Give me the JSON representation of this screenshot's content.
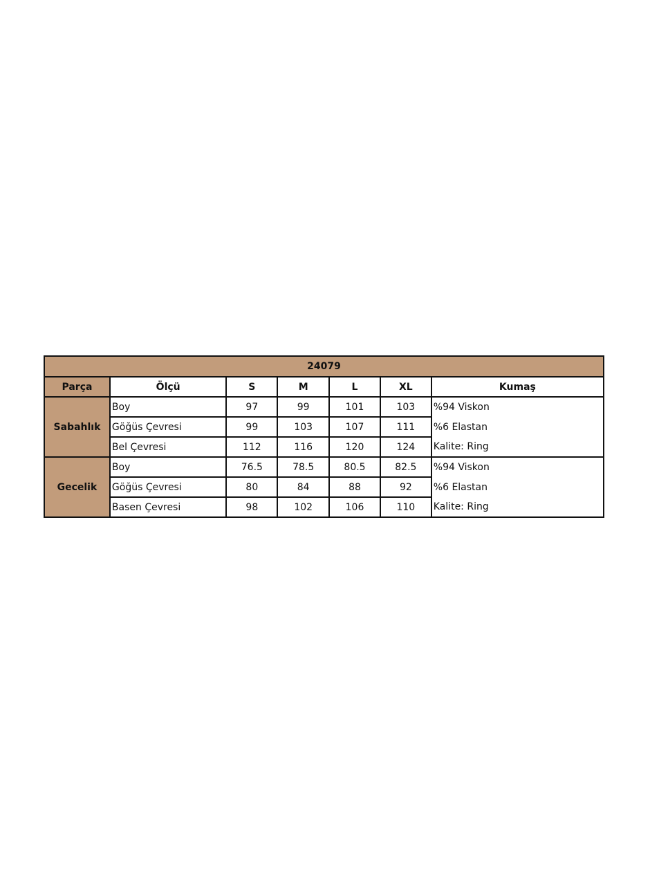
{
  "title": "24079",
  "headers": [
    "Parça",
    "Ölçü",
    "S",
    "M",
    "L",
    "XL",
    "Kumaş"
  ],
  "groups": [
    {
      "name": "Sabahlık",
      "rows": [
        {
          "measure": "Boy",
          "values": [
            "97",
            "99",
            "101",
            "103"
          ],
          "fabric": "%94 Viskon"
        },
        {
          "measure": "Göğüs Çevresi",
          "values": [
            "99",
            "103",
            "107",
            "111"
          ],
          "fabric": "%6 Elastan"
        },
        {
          "measure": "Bel Çevresi",
          "values": [
            "112",
            "116",
            "120",
            "124"
          ],
          "fabric": "Kalite: Ring"
        }
      ]
    },
    {
      "name": "Gecelik",
      "rows": [
        {
          "measure": "Boy",
          "values": [
            "76.5",
            "78.5",
            "80.5",
            "82.5"
          ],
          "fabric": "%94 Viskon"
        },
        {
          "measure": "Göğüs Çevresi",
          "values": [
            "80",
            "84",
            "88",
            "92"
          ],
          "fabric": "%6 Elastan"
        },
        {
          "measure": "Basen Çevresi",
          "values": [
            "98",
            "102",
            "106",
            "110"
          ],
          "fabric": "Kalite: Ring"
        }
      ]
    }
  ],
  "colors": {
    "header_bg": "#c29c7b",
    "border": "#111111"
  }
}
